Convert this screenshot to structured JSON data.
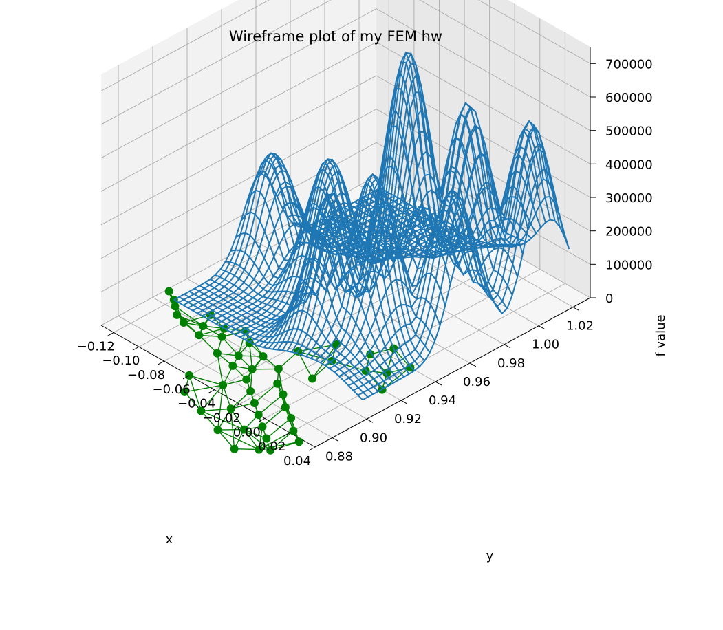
{
  "chart_data": {
    "type": "wireframe-3d",
    "title": "Wireframe plot of my FEM hw",
    "xlabel": "x",
    "ylabel": "y",
    "zlabel": "f value",
    "x_ticks": [
      "−0.12",
      "−0.10",
      "−0.08",
      "−0.06",
      "−0.04",
      "−0.02",
      "0.00",
      "0.02",
      "0.04"
    ],
    "y_ticks": [
      "0.88",
      "0.90",
      "0.92",
      "0.94",
      "0.96",
      "0.98",
      "1.00",
      "1.02"
    ],
    "z_ticks": [
      "0",
      "100000",
      "200000",
      "300000",
      "400000",
      "500000",
      "600000",
      "700000"
    ],
    "xlim": [
      -0.13,
      0.04
    ],
    "ylim": [
      0.87,
      1.03
    ],
    "zlim": [
      0,
      750000
    ],
    "grid": true,
    "colors": {
      "wireframe": "#1f77b4",
      "mesh": "#008000",
      "pane": "#f2f2f2",
      "grid": "#b0b0b0"
    },
    "surface_peaks": [
      {
        "x": -0.03,
        "y": 0.975,
        "z": 720000
      },
      {
        "x": -0.01,
        "y": 0.995,
        "z": 520000
      },
      {
        "x": -0.065,
        "y": 0.955,
        "z": 400000
      },
      {
        "x": -0.11,
        "y": 0.955,
        "z": 320000
      },
      {
        "x": 0.02,
        "y": 1.01,
        "z": 500000
      },
      {
        "x": -0.01,
        "y": 0.94,
        "z": 460000
      },
      {
        "x": -0.03,
        "y": 0.93,
        "z": 420000
      },
      {
        "x": 0.02,
        "y": 0.965,
        "z": 420000
      },
      {
        "x": -0.005,
        "y": 0.965,
        "z": 300000
      }
    ],
    "mesh_nodes": [
      [
        -0.128,
        0.978
      ],
      [
        -0.12,
        0.975
      ],
      [
        -0.115,
        0.972
      ],
      [
        -0.108,
        0.968
      ],
      [
        -0.1,
        0.966
      ],
      [
        -0.095,
        0.978
      ],
      [
        -0.09,
        0.97
      ],
      [
        -0.085,
        0.964
      ],
      [
        -0.08,
        0.975
      ],
      [
        -0.075,
        0.97
      ],
      [
        -0.07,
        0.98
      ],
      [
        -0.065,
        0.96
      ],
      [
        -0.06,
        0.975
      ],
      [
        -0.055,
        0.965
      ],
      [
        -0.05,
        0.958
      ],
      [
        -0.045,
        0.972
      ],
      [
        -0.04,
        0.962
      ],
      [
        -0.035,
        0.955
      ],
      [
        -0.03,
        0.97
      ],
      [
        -0.025,
        0.95
      ],
      [
        -0.02,
        0.962
      ],
      [
        -0.015,
        0.945
      ],
      [
        -0.01,
        0.958
      ],
      [
        -0.005,
        0.94
      ],
      [
        0.0,
        0.952
      ],
      [
        0.005,
        0.935
      ],
      [
        0.01,
        0.948
      ],
      [
        0.015,
        0.93
      ],
      [
        0.02,
        0.942
      ],
      [
        0.025,
        0.925
      ],
      [
        0.03,
        0.938
      ],
      [
        -0.06,
        0.94
      ],
      [
        -0.05,
        0.93
      ],
      [
        -0.04,
        0.945
      ],
      [
        -0.03,
        0.925
      ],
      [
        -0.02,
        0.935
      ],
      [
        -0.01,
        0.92
      ],
      [
        0.0,
        0.928
      ],
      [
        0.01,
        0.915
      ],
      [
        0.02,
        0.922
      ],
      [
        -0.005,
        1.005
      ],
      [
        0.005,
        0.995
      ],
      [
        0.015,
        1.0
      ],
      [
        0.025,
        0.99
      ],
      [
        -0.015,
        0.99
      ],
      [
        -0.025,
        1.0
      ],
      [
        -0.035,
        0.985
      ],
      [
        0.0,
        1.015
      ],
      [
        0.02,
        1.01
      ],
      [
        -0.01,
        0.975
      ]
    ]
  }
}
